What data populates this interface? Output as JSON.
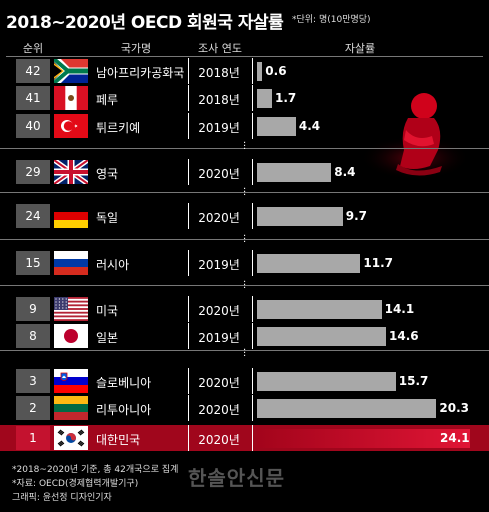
{
  "title": "2018~2020년 OECD 회원국 자살률",
  "unit_note": "*단위: 명(10만명당)",
  "headers": {
    "rank": "순위",
    "country": "국가명",
    "year": "조사 연도",
    "rate": "자살률"
  },
  "chart_data": {
    "type": "bar",
    "title": "2018~2020년 OECD 회원국 자살률",
    "unit": "명(10만명당)",
    "categories": [
      "남아프리카공화국",
      "페루",
      "튀르키예",
      "영국",
      "독일",
      "러시아",
      "미국",
      "일본",
      "슬로베니아",
      "리투아니아",
      "대한민국"
    ],
    "values": [
      0.6,
      1.7,
      4.4,
      8.4,
      9.7,
      11.7,
      14.1,
      14.6,
      15.7,
      20.3,
      24.1
    ],
    "value_labels": [
      "0.6",
      "1.7",
      "4.4",
      "8.4",
      "9.7",
      "11.7",
      "14.1",
      "14.6",
      "15.7",
      "20.3",
      "24.1"
    ],
    "ranks": [
      "42",
      "41",
      "40",
      "29",
      "24",
      "15",
      "9",
      "8",
      "3",
      "2",
      "1"
    ],
    "years": [
      "2018년",
      "2018년",
      "2019년",
      "2020년",
      "2020년",
      "2019년",
      "2020년",
      "2019년",
      "2020년",
      "2020년",
      "2020년"
    ],
    "xlim": [
      0,
      24.1
    ],
    "highlight": "대한민국",
    "colors": {
      "bar": "#a8a8a8",
      "highlight": "#c4122f",
      "background": "#000000"
    }
  },
  "footnotes": [
    "*2018~2020년 기준, 총 42개국으로 집계",
    "*자료: OECD(경제협력개발기구)",
    "그래픽: 윤선정 디자인기자"
  ],
  "watermark": "한솔안신문"
}
